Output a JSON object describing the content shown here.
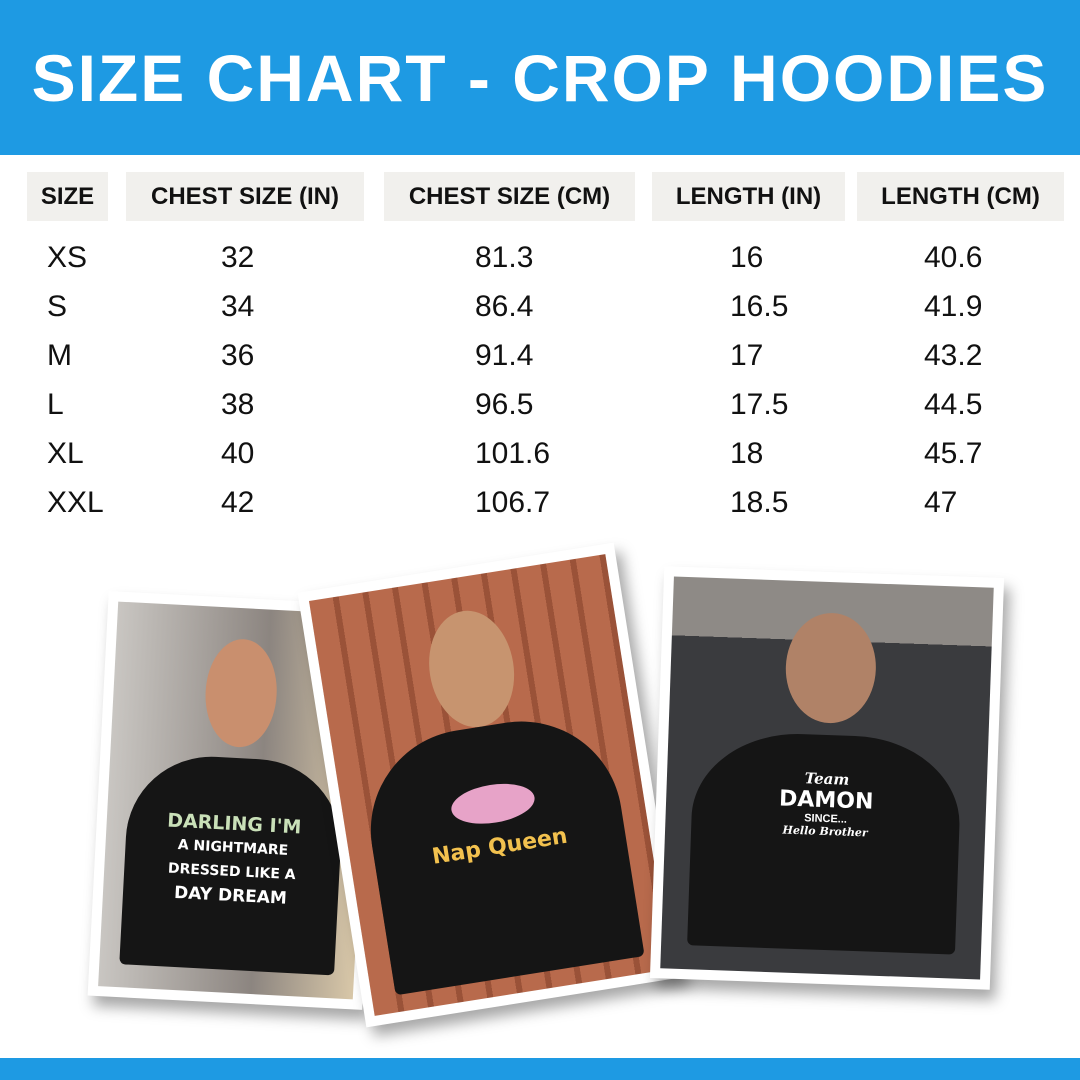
{
  "title": "SIZE CHART - CROP HOODIES",
  "colors": {
    "brand": "#1e9ae3",
    "header_bg": "#f1f0ed"
  },
  "table": {
    "headers": [
      "SIZE",
      "CHEST SIZE (IN)",
      "CHEST SIZE (CM)",
      "LENGTH (IN)",
      "LENGTH (CM)"
    ],
    "rows": [
      [
        "XS",
        "32",
        "81.3",
        "16",
        "40.6"
      ],
      [
        "S",
        "34",
        "86.4",
        "16.5",
        "41.9"
      ],
      [
        "M",
        "36",
        "91.4",
        "17",
        "43.2"
      ],
      [
        "L",
        "38",
        "96.5",
        "17.5",
        "44.5"
      ],
      [
        "XL",
        "40",
        "101.6",
        "18",
        "45.7"
      ],
      [
        "XXL",
        "42",
        "106.7",
        "18.5",
        "47"
      ]
    ]
  },
  "photos": [
    {
      "print_lines": [
        "DARLING I'M",
        "A NIGHTMARE",
        "DRESSED LIKE A",
        "DAY DREAM"
      ]
    },
    {
      "print_lines": [
        "Nap Queen"
      ]
    },
    {
      "print_lines": [
        "Team",
        "DAMON",
        "SINCE...",
        "Hello Brother"
      ]
    }
  ]
}
